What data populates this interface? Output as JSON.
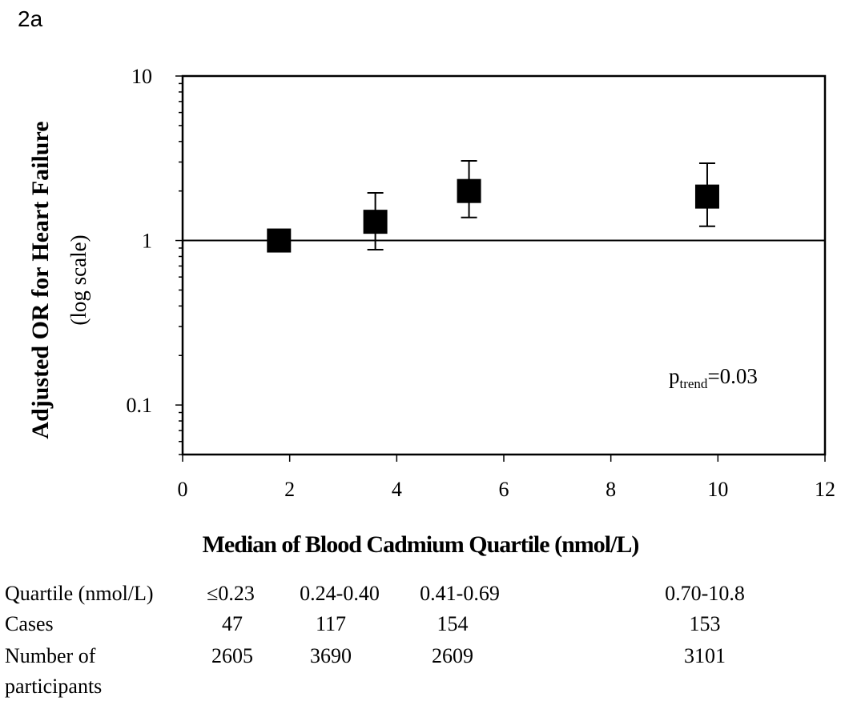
{
  "panel_label": "2a",
  "chart_data": {
    "type": "scatter",
    "xlabel": "Median of Blood Cadmium Quartile (nmol/L)",
    "ylabel": "Adjusted OR for Heart Failure",
    "ylabel_sub": "(log scale)",
    "xlim": [
      0,
      12
    ],
    "ylim": [
      0.05,
      10
    ],
    "y_scale": "log",
    "x_ticks": [
      "0",
      "2",
      "4",
      "6",
      "8",
      "10",
      "12"
    ],
    "y_tick_labels": [
      "10",
      "1",
      "0.1"
    ],
    "reference_line_y": 1,
    "points": [
      {
        "x": 1.8,
        "y": 1.0,
        "low": null,
        "high": null
      },
      {
        "x": 3.6,
        "y": 1.3,
        "low": 0.88,
        "high": 1.95
      },
      {
        "x": 5.35,
        "y": 2.0,
        "low": 1.38,
        "high": 3.05
      },
      {
        "x": 9.8,
        "y": 1.85,
        "low": 1.22,
        "high": 2.95
      }
    ],
    "annotation": {
      "main": "p",
      "sub": "trend",
      "rest": "=0.03"
    }
  },
  "table": {
    "header_label": "Quartile (nmol/L)",
    "quartiles": [
      "≤0.23",
      "0.24-0.40",
      "0.41-0.69",
      "0.70-10.8"
    ],
    "cases_label": "Cases",
    "cases": [
      "47",
      "117",
      "154",
      "153"
    ],
    "participants_label_line1": "Number of",
    "participants_label_line2": "participants",
    "participants": [
      "2605",
      "3690",
      "2609",
      "3101"
    ]
  }
}
